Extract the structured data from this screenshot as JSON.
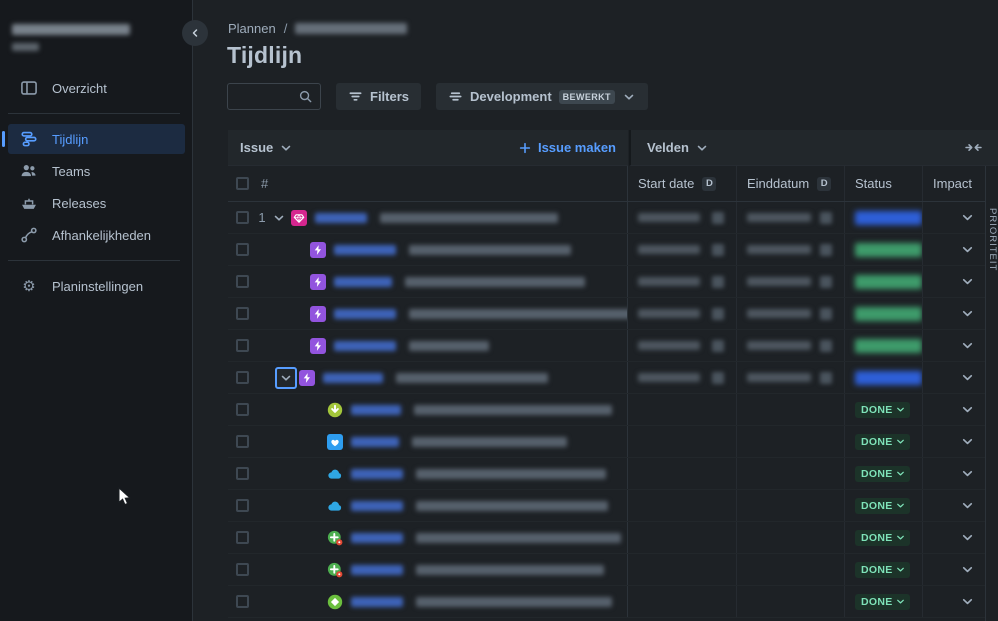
{
  "colors": {
    "accent": "#579DFF",
    "status_blue": "#2E5FD8",
    "status_green": "#3E9B6B",
    "done_bg": "#1C3329",
    "done_text": "#7EE2B8",
    "epic_purple": "#9254DE",
    "initiative_pink": "#D6268F"
  },
  "sidebar": {
    "plan_title_blurred": true,
    "items": [
      {
        "label": "Overzicht",
        "icon": "board-icon",
        "selected": false
      },
      {
        "label": "Tijdlijn",
        "icon": "timeline-icon",
        "selected": true
      },
      {
        "label": "Teams",
        "icon": "teams-icon",
        "selected": false
      },
      {
        "label": "Releases",
        "icon": "ship-icon",
        "selected": false
      },
      {
        "label": "Afhankelijkheden",
        "icon": "dependencies-icon",
        "selected": false
      }
    ],
    "footer_item": {
      "label": "Planinstellingen",
      "icon": "gear-icon"
    }
  },
  "breadcrumb": {
    "root": "Plannen",
    "separator": "/",
    "current_blurred": true
  },
  "page_title": "Tijdlijn",
  "toolbar": {
    "search_placeholder": "",
    "filters_label": "Filters",
    "view_label": "Development",
    "view_badge": "BEWERKT"
  },
  "table": {
    "issue_header": "Issue",
    "create_issue_label": "Issue maken",
    "fields_header": "Velden",
    "columns": {
      "index": "#",
      "start_date": "Start date",
      "end_date": "Einddatum",
      "status": "Status",
      "impact": "Impact",
      "derived_badge": "D"
    },
    "done_label": "DONE",
    "right_rail_label": "PRIORITEIT"
  },
  "rows": [
    {
      "index": "1",
      "level": 0,
      "expander": "chevron",
      "icon": "initiative-icon",
      "key_w": 52,
      "summary_w": 178,
      "dates": true,
      "status": "blue"
    },
    {
      "index": "",
      "level": 1,
      "expander": "none",
      "icon": "epic-icon",
      "key_w": 62,
      "summary_w": 162,
      "dates": true,
      "status": "green"
    },
    {
      "index": "",
      "level": 1,
      "expander": "none",
      "icon": "epic-icon",
      "key_w": 58,
      "summary_w": 180,
      "dates": true,
      "status": "green"
    },
    {
      "index": "",
      "level": 1,
      "expander": "none",
      "icon": "epic-icon",
      "key_w": 62,
      "summary_w": 228,
      "dates": true,
      "status": "green"
    },
    {
      "index": "",
      "level": 1,
      "expander": "none",
      "icon": "epic-icon",
      "key_w": 62,
      "summary_w": 80,
      "dates": true,
      "status": "green"
    },
    {
      "index": "",
      "level": 1,
      "expander": "chevron-button",
      "icon": "epic-icon",
      "key_w": 60,
      "summary_w": 152,
      "dates": true,
      "status": "blue"
    },
    {
      "index": "",
      "level": 2,
      "expander": "none",
      "icon": "arrow-down-circle-icon",
      "key_w": 50,
      "summary_w": 198,
      "dates": false,
      "status": "done"
    },
    {
      "index": "",
      "level": 2,
      "expander": "none",
      "icon": "heart-square-icon",
      "key_w": 48,
      "summary_w": 155,
      "dates": false,
      "status": "done"
    },
    {
      "index": "",
      "level": 2,
      "expander": "none",
      "icon": "cloud-icon",
      "key_w": 52,
      "summary_w": 190,
      "dates": false,
      "status": "done"
    },
    {
      "index": "",
      "level": 2,
      "expander": "none",
      "icon": "cloud-icon",
      "key_w": 52,
      "summary_w": 192,
      "dates": false,
      "status": "done"
    },
    {
      "index": "",
      "level": 2,
      "expander": "none",
      "icon": "plus-circle-bug-icon",
      "key_w": 52,
      "summary_w": 205,
      "dates": false,
      "status": "done"
    },
    {
      "index": "",
      "level": 2,
      "expander": "none",
      "icon": "plus-circle-bug-icon",
      "key_w": 52,
      "summary_w": 188,
      "dates": false,
      "status": "done"
    },
    {
      "index": "",
      "level": 2,
      "expander": "none",
      "icon": "diamond-circle-icon",
      "key_w": 52,
      "summary_w": 196,
      "dates": false,
      "status": "done"
    }
  ]
}
